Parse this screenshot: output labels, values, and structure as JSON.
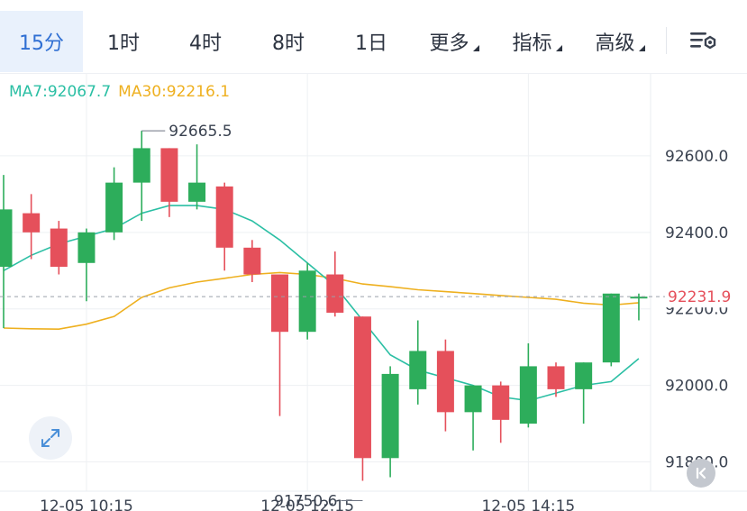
{
  "tabs": [
    {
      "label": "15分",
      "active": true,
      "dropdown": false
    },
    {
      "label": "1时",
      "active": false,
      "dropdown": false
    },
    {
      "label": "4时",
      "active": false,
      "dropdown": false
    },
    {
      "label": "8时",
      "active": false,
      "dropdown": false
    },
    {
      "label": "1日",
      "active": false,
      "dropdown": false
    },
    {
      "label": "更多",
      "active": false,
      "dropdown": true
    },
    {
      "label": "指标",
      "active": false,
      "dropdown": true
    },
    {
      "label": "高级",
      "active": false,
      "dropdown": true
    }
  ],
  "ma": {
    "ma7_label": "MA7:92067.7",
    "ma30_label": "MA30:92216.1"
  },
  "colors": {
    "up": "#2dad5b",
    "down": "#e5505b",
    "ma7": "#2bbfa4",
    "ma30": "#eeb01f",
    "accent": "#2f6fd3",
    "price_label": "#e5505b"
  },
  "icons": {
    "settings": "chart-settings-icon",
    "fullscreen": "expand-arrows-icon",
    "reset": "scroll-to-latest-icon"
  },
  "chart_data": {
    "type": "candlestick",
    "y_ticks": [
      "92600.0",
      "92400.0",
      "92200.0",
      "92000.0",
      "91800.0"
    ],
    "ylim": [
      91700,
      92800
    ],
    "x_tick_labels": [
      {
        "index": 3,
        "label": "12-05 10:15"
      },
      {
        "index": 11,
        "label": "12-05 12:15"
      },
      {
        "index": 19,
        "label": "12-05 14:15"
      }
    ],
    "current_price": "92231.9",
    "high_annotation": {
      "label": "92665.5",
      "index": 5,
      "value": 92665.5
    },
    "low_annotation": {
      "label": "91750.6",
      "index": 13,
      "value": 91750.6
    },
    "candles": [
      {
        "o": 92310,
        "h": 92550,
        "l": 92150,
        "c": 92460
      },
      {
        "o": 92450,
        "h": 92500,
        "l": 92330,
        "c": 92400
      },
      {
        "o": 92410,
        "h": 92430,
        "l": 92290,
        "c": 92310
      },
      {
        "o": 92320,
        "h": 92410,
        "l": 92220,
        "c": 92400
      },
      {
        "o": 92400,
        "h": 92570,
        "l": 92380,
        "c": 92530
      },
      {
        "o": 92530,
        "h": 92665.5,
        "l": 92430,
        "c": 92620
      },
      {
        "o": 92620,
        "h": 92620,
        "l": 92440,
        "c": 92480
      },
      {
        "o": 92480,
        "h": 92630,
        "l": 92460,
        "c": 92530
      },
      {
        "o": 92520,
        "h": 92530,
        "l": 92300,
        "c": 92360
      },
      {
        "o": 92360,
        "h": 92380,
        "l": 92270,
        "c": 92290
      },
      {
        "o": 92290,
        "h": 92290,
        "l": 91920,
        "c": 92140
      },
      {
        "o": 92140,
        "h": 92320,
        "l": 92120,
        "c": 92300
      },
      {
        "o": 92290,
        "h": 92350,
        "l": 92180,
        "c": 92190
      },
      {
        "o": 92180,
        "h": 92180,
        "l": 91750.6,
        "c": 91810
      },
      {
        "o": 91810,
        "h": 92050,
        "l": 91760,
        "c": 92030
      },
      {
        "o": 91990,
        "h": 92170,
        "l": 91950,
        "c": 92090
      },
      {
        "o": 92090,
        "h": 92120,
        "l": 91880,
        "c": 91930
      },
      {
        "o": 91930,
        "h": 92000,
        "l": 91830,
        "c": 92000
      },
      {
        "o": 92000,
        "h": 92010,
        "l": 91850,
        "c": 91910
      },
      {
        "o": 91900,
        "h": 92110,
        "l": 91890,
        "c": 92050
      },
      {
        "o": 92050,
        "h": 92060,
        "l": 91970,
        "c": 91990
      },
      {
        "o": 91990,
        "h": 92060,
        "l": 91900,
        "c": 92060
      },
      {
        "o": 92060,
        "h": 92240,
        "l": 92050,
        "c": 92240
      },
      {
        "o": 92231.9,
        "h": 92240,
        "l": 92170,
        "c": 92231.9
      }
    ],
    "ma7": [
      92300,
      92340,
      92370,
      92390,
      92410,
      92450,
      92470,
      92470,
      92460,
      92430,
      92380,
      92320,
      92260,
      92170,
      92080,
      92040,
      92020,
      92000,
      91970,
      91960,
      91980,
      92000,
      92010,
      92070
    ],
    "ma30": [
      92150,
      92148,
      92147,
      92160,
      92180,
      92230,
      92255,
      92270,
      92280,
      92290,
      92295,
      92290,
      92280,
      92265,
      92258,
      92250,
      92245,
      92240,
      92235,
      92230,
      92225,
      92215,
      92210,
      92216
    ]
  }
}
